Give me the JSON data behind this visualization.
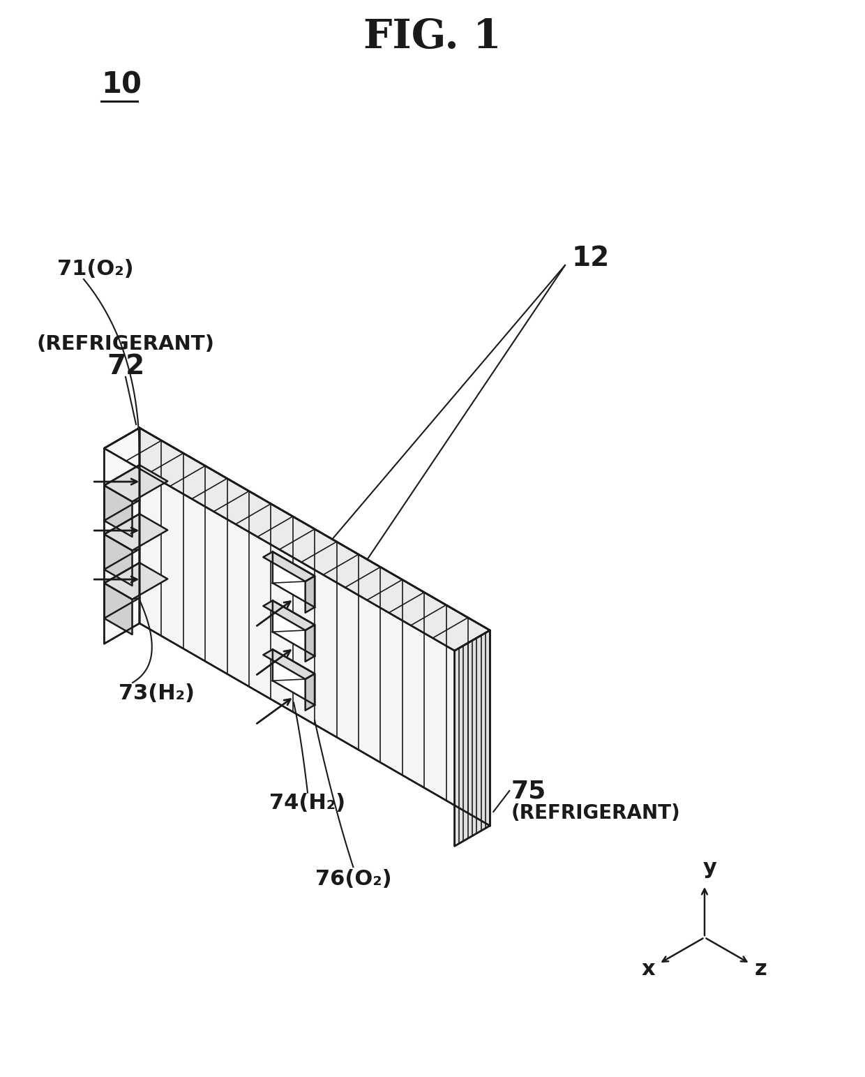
{
  "title": "FIG. 1",
  "bg_color": "#ffffff",
  "line_color": "#1a1a1a",
  "figure_label": "10",
  "stack_label": "12",
  "labels": {
    "71": "71(O₂)",
    "72_top": "(REFRIGERANT)",
    "72": "72",
    "73": "73(H₂)",
    "74": "74(H₂)",
    "75": "75",
    "75b": "(REFRIGERANT)",
    "76": "76(O₂)"
  },
  "axes_labels": {
    "x": "x",
    "y": "y",
    "z": "z"
  }
}
